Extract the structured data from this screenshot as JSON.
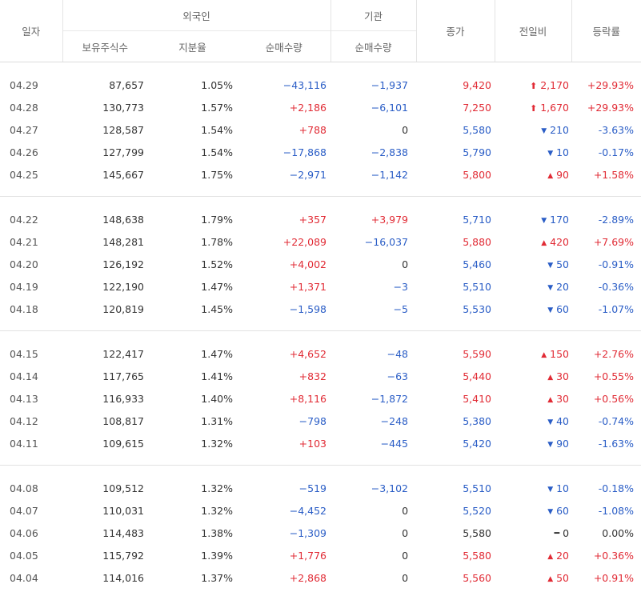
{
  "headers": {
    "date": "일자",
    "foreign": "외국인",
    "institution": "기관",
    "close": "종가",
    "change": "전일비",
    "rate": "등락률",
    "holdings": "보유주식수",
    "share": "지분율",
    "foreign_net": "순매수량",
    "inst_net": "순매수량"
  },
  "groups": [
    [
      {
        "date": "04.29",
        "holdings": "87,657",
        "share": "1.05%",
        "foreign_net": "−43,116",
        "inst_net": "−1,937",
        "close": "9,420",
        "change": "2,170",
        "rate": "+29.93%",
        "dir": "limitup"
      },
      {
        "date": "04.28",
        "holdings": "130,773",
        "share": "1.57%",
        "foreign_net": "+2,186",
        "inst_net": "−6,101",
        "close": "7,250",
        "change": "1,670",
        "rate": "+29.93%",
        "dir": "limitup"
      },
      {
        "date": "04.27",
        "holdings": "128,587",
        "share": "1.54%",
        "foreign_net": "+788",
        "inst_net": "0",
        "close": "5,580",
        "change": "210",
        "rate": "-3.63%",
        "dir": "down"
      },
      {
        "date": "04.26",
        "holdings": "127,799",
        "share": "1.54%",
        "foreign_net": "−17,868",
        "inst_net": "−2,838",
        "close": "5,790",
        "change": "10",
        "rate": "-0.17%",
        "dir": "down"
      },
      {
        "date": "04.25",
        "holdings": "145,667",
        "share": "1.75%",
        "foreign_net": "−2,971",
        "inst_net": "−1,142",
        "close": "5,800",
        "change": "90",
        "rate": "+1.58%",
        "dir": "up"
      }
    ],
    [
      {
        "date": "04.22",
        "holdings": "148,638",
        "share": "1.79%",
        "foreign_net": "+357",
        "inst_net": "+3,979",
        "close": "5,710",
        "change": "170",
        "rate": "-2.89%",
        "dir": "down"
      },
      {
        "date": "04.21",
        "holdings": "148,281",
        "share": "1.78%",
        "foreign_net": "+22,089",
        "inst_net": "−16,037",
        "close": "5,880",
        "change": "420",
        "rate": "+7.69%",
        "dir": "up"
      },
      {
        "date": "04.20",
        "holdings": "126,192",
        "share": "1.52%",
        "foreign_net": "+4,002",
        "inst_net": "0",
        "close": "5,460",
        "change": "50",
        "rate": "-0.91%",
        "dir": "down"
      },
      {
        "date": "04.19",
        "holdings": "122,190",
        "share": "1.47%",
        "foreign_net": "+1,371",
        "inst_net": "−3",
        "close": "5,510",
        "change": "20",
        "rate": "-0.36%",
        "dir": "down"
      },
      {
        "date": "04.18",
        "holdings": "120,819",
        "share": "1.45%",
        "foreign_net": "−1,598",
        "inst_net": "−5",
        "close": "5,530",
        "change": "60",
        "rate": "-1.07%",
        "dir": "down"
      }
    ],
    [
      {
        "date": "04.15",
        "holdings": "122,417",
        "share": "1.47%",
        "foreign_net": "+4,652",
        "inst_net": "−48",
        "close": "5,590",
        "change": "150",
        "rate": "+2.76%",
        "dir": "up"
      },
      {
        "date": "04.14",
        "holdings": "117,765",
        "share": "1.41%",
        "foreign_net": "+832",
        "inst_net": "−63",
        "close": "5,440",
        "change": "30",
        "rate": "+0.55%",
        "dir": "up"
      },
      {
        "date": "04.13",
        "holdings": "116,933",
        "share": "1.40%",
        "foreign_net": "+8,116",
        "inst_net": "−1,872",
        "close": "5,410",
        "change": "30",
        "rate": "+0.56%",
        "dir": "up"
      },
      {
        "date": "04.12",
        "holdings": "108,817",
        "share": "1.31%",
        "foreign_net": "−798",
        "inst_net": "−248",
        "close": "5,380",
        "change": "40",
        "rate": "-0.74%",
        "dir": "down"
      },
      {
        "date": "04.11",
        "holdings": "109,615",
        "share": "1.32%",
        "foreign_net": "+103",
        "inst_net": "−445",
        "close": "5,420",
        "change": "90",
        "rate": "-1.63%",
        "dir": "down"
      }
    ],
    [
      {
        "date": "04.08",
        "holdings": "109,512",
        "share": "1.32%",
        "foreign_net": "−519",
        "inst_net": "−3,102",
        "close": "5,510",
        "change": "10",
        "rate": "-0.18%",
        "dir": "down"
      },
      {
        "date": "04.07",
        "holdings": "110,031",
        "share": "1.32%",
        "foreign_net": "−4,452",
        "inst_net": "0",
        "close": "5,520",
        "change": "60",
        "rate": "-1.08%",
        "dir": "down"
      },
      {
        "date": "04.06",
        "holdings": "114,483",
        "share": "1.38%",
        "foreign_net": "−1,309",
        "inst_net": "0",
        "close": "5,580",
        "change": "0",
        "rate": "0.00%",
        "dir": "flat"
      },
      {
        "date": "04.05",
        "holdings": "115,792",
        "share": "1.39%",
        "foreign_net": "+1,776",
        "inst_net": "0",
        "close": "5,580",
        "change": "20",
        "rate": "+0.36%",
        "dir": "up"
      },
      {
        "date": "04.04",
        "holdings": "114,016",
        "share": "1.37%",
        "foreign_net": "+2,868",
        "inst_net": "0",
        "close": "5,560",
        "change": "50",
        "rate": "+0.91%",
        "dir": "up"
      }
    ]
  ],
  "colors": {
    "up": "#e12b35",
    "down": "#2a5dc6",
    "neutral": "#333333"
  },
  "icons": {
    "limitup": "arrow-up-limit-icon",
    "up": "triangle-up-icon",
    "down": "triangle-down-icon",
    "flat": "dash-icon"
  }
}
